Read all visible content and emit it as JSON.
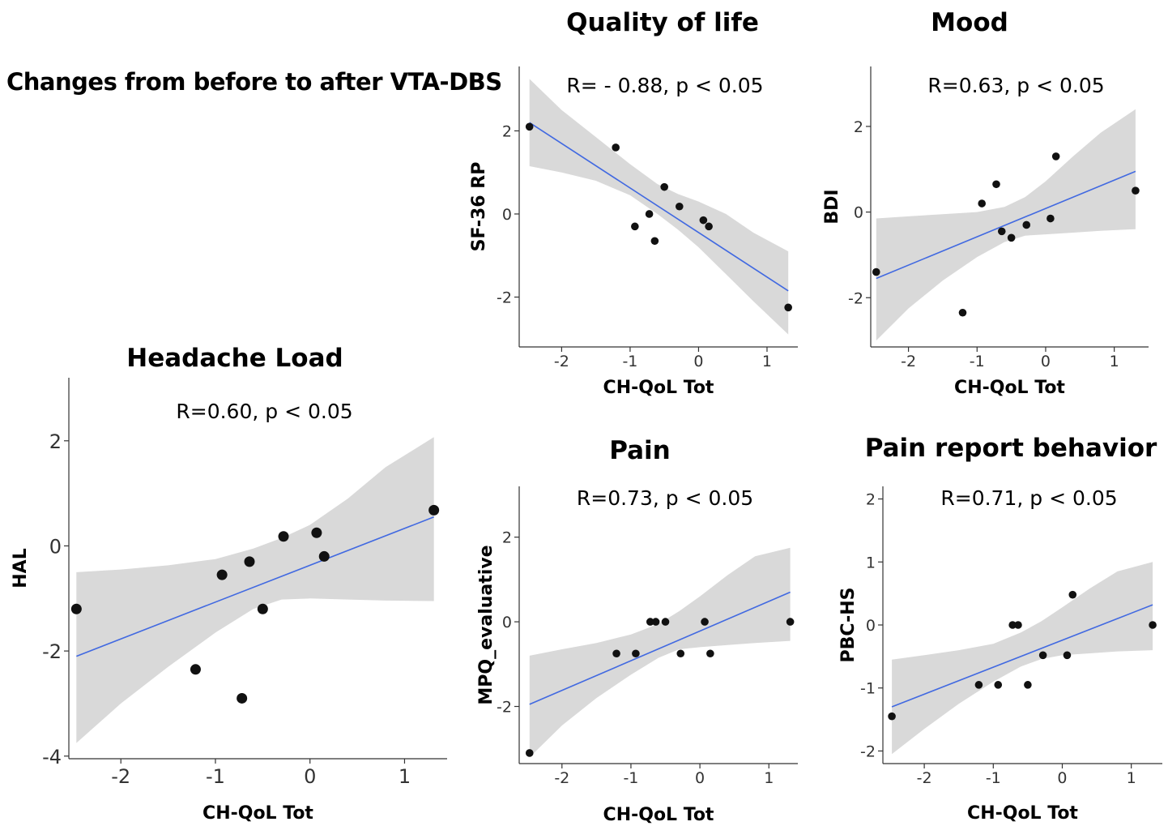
{
  "figure": {
    "main_title": "Changes from before to after VTA-DBS"
  },
  "chart_data": [
    {
      "id": "headache",
      "type": "scatter",
      "title": "Headache Load",
      "annotation": "R=0.60, p < 0.05",
      "xlabel": "CH-QoL Tot",
      "ylabel": "HAL",
      "xlim": [
        -2.55,
        1.45
      ],
      "ylim": [
        -4.05,
        3.2
      ],
      "xticks": [
        -2,
        -1,
        0,
        1
      ],
      "yticks": [
        -4,
        -2,
        0,
        2
      ],
      "grid": false,
      "points": [
        {
          "x": -2.47,
          "y": -1.2
        },
        {
          "x": -1.21,
          "y": -2.35
        },
        {
          "x": -0.93,
          "y": -0.55
        },
        {
          "x": -0.72,
          "y": -2.9
        },
        {
          "x": -0.64,
          "y": -0.3
        },
        {
          "x": -0.5,
          "y": -1.2
        },
        {
          "x": -0.28,
          "y": 0.18
        },
        {
          "x": 0.07,
          "y": 0.25
        },
        {
          "x": 0.15,
          "y": -0.2
        },
        {
          "x": 1.31,
          "y": 0.68
        }
      ],
      "fit": {
        "x": [
          -2.47,
          1.31
        ],
        "y": [
          -2.1,
          0.55
        ]
      },
      "ci": [
        {
          "x": -2.47,
          "lo": -3.75,
          "hi": -0.5
        },
        {
          "x": -2.0,
          "lo": -3.0,
          "hi": -0.45
        },
        {
          "x": -1.5,
          "lo": -2.3,
          "hi": -0.37
        },
        {
          "x": -1.0,
          "lo": -1.65,
          "hi": -0.25
        },
        {
          "x": -0.6,
          "lo": -1.2,
          "hi": -0.05
        },
        {
          "x": -0.3,
          "lo": -1.02,
          "hi": 0.15
        },
        {
          "x": 0.0,
          "lo": -1.0,
          "hi": 0.4
        },
        {
          "x": 0.4,
          "lo": -1.02,
          "hi": 0.9
        },
        {
          "x": 0.8,
          "lo": -1.04,
          "hi": 1.5
        },
        {
          "x": 1.31,
          "lo": -1.05,
          "hi": 2.07
        }
      ]
    },
    {
      "id": "qol",
      "type": "scatter",
      "title": "Quality of life",
      "annotation": "R= - 0.88, p < 0.05",
      "xlabel": "CH-QoL Tot",
      "ylabel": "SF-36 RP",
      "xlim": [
        -2.62,
        1.45
      ],
      "ylim": [
        -3.2,
        3.55
      ],
      "xticks": [
        -2,
        -1,
        0,
        1
      ],
      "yticks": [
        -2,
        0,
        2
      ],
      "grid": false,
      "points": [
        {
          "x": -2.47,
          "y": 2.1
        },
        {
          "x": -1.21,
          "y": 1.6
        },
        {
          "x": -0.93,
          "y": -0.3
        },
        {
          "x": -0.72,
          "y": 0.0
        },
        {
          "x": -0.64,
          "y": -0.65
        },
        {
          "x": -0.5,
          "y": 0.65
        },
        {
          "x": -0.28,
          "y": 0.18
        },
        {
          "x": 0.07,
          "y": -0.15
        },
        {
          "x": 0.15,
          "y": -0.3
        },
        {
          "x": 1.31,
          "y": -2.25
        }
      ],
      "fit": {
        "x": [
          -2.47,
          1.31
        ],
        "y": [
          2.2,
          -1.85
        ]
      },
      "ci": [
        {
          "x": -2.47,
          "lo": 1.15,
          "hi": 3.25
        },
        {
          "x": -2.0,
          "lo": 1.0,
          "hi": 2.5
        },
        {
          "x": -1.5,
          "lo": 0.8,
          "hi": 1.85
        },
        {
          "x": -1.0,
          "lo": 0.45,
          "hi": 1.2
        },
        {
          "x": -0.6,
          "lo": 0.0,
          "hi": 0.72
        },
        {
          "x": -0.3,
          "lo": -0.38,
          "hi": 0.48
        },
        {
          "x": 0.0,
          "lo": -0.8,
          "hi": 0.3
        },
        {
          "x": 0.4,
          "lo": -1.45,
          "hi": 0.0
        },
        {
          "x": 0.8,
          "lo": -2.1,
          "hi": -0.45
        },
        {
          "x": 1.31,
          "lo": -2.9,
          "hi": -0.9
        }
      ]
    },
    {
      "id": "mood",
      "type": "scatter",
      "title": "Mood",
      "annotation": "R=0.63, p < 0.05",
      "xlabel": "CH-QoL Tot",
      "ylabel": "BDI",
      "xlim": [
        -2.55,
        1.5
      ],
      "ylim": [
        -3.15,
        3.4
      ],
      "xticks": [
        -2,
        -1,
        0,
        1
      ],
      "yticks": [
        -2,
        0,
        2
      ],
      "grid": false,
      "points": [
        {
          "x": -2.47,
          "y": -1.4
        },
        {
          "x": -1.21,
          "y": -2.35
        },
        {
          "x": -0.93,
          "y": 0.2
        },
        {
          "x": -0.72,
          "y": 0.65
        },
        {
          "x": -0.64,
          "y": -0.45
        },
        {
          "x": -0.5,
          "y": -0.6
        },
        {
          "x": -0.28,
          "y": -0.3
        },
        {
          "x": 0.07,
          "y": -0.15
        },
        {
          "x": 0.15,
          "y": 1.3
        },
        {
          "x": 1.31,
          "y": 0.5
        }
      ],
      "fit": {
        "x": [
          -2.47,
          1.31
        ],
        "y": [
          -1.55,
          0.95
        ]
      },
      "ci": [
        {
          "x": -2.47,
          "lo": -3.0,
          "hi": -0.15
        },
        {
          "x": -2.0,
          "lo": -2.25,
          "hi": -0.1
        },
        {
          "x": -1.5,
          "lo": -1.6,
          "hi": -0.05
        },
        {
          "x": -1.0,
          "lo": -1.05,
          "hi": 0.0
        },
        {
          "x": -0.6,
          "lo": -0.7,
          "hi": 0.12
        },
        {
          "x": -0.3,
          "lo": -0.55,
          "hi": 0.35
        },
        {
          "x": 0.0,
          "lo": -0.52,
          "hi": 0.72
        },
        {
          "x": 0.4,
          "lo": -0.48,
          "hi": 1.3
        },
        {
          "x": 0.8,
          "lo": -0.44,
          "hi": 1.85
        },
        {
          "x": 1.31,
          "lo": -0.4,
          "hi": 2.4
        }
      ]
    },
    {
      "id": "pain",
      "type": "scatter",
      "title": "Pain",
      "annotation": "R=0.73, p < 0.05",
      "xlabel": "CH-QoL Tot",
      "ylabel": "MPQ_evaluative",
      "xlim": [
        -2.62,
        1.42
      ],
      "ylim": [
        -3.35,
        3.2
      ],
      "xticks": [
        -2,
        -1,
        0,
        1
      ],
      "yticks": [
        -2,
        0,
        2
      ],
      "grid": false,
      "points": [
        {
          "x": -2.47,
          "y": -3.1
        },
        {
          "x": -1.21,
          "y": -0.75
        },
        {
          "x": -0.93,
          "y": -0.75
        },
        {
          "x": -0.72,
          "y": 0.0
        },
        {
          "x": -0.64,
          "y": 0.0
        },
        {
          "x": -0.5,
          "y": 0.0
        },
        {
          "x": -0.28,
          "y": -0.75
        },
        {
          "x": 0.07,
          "y": 0.0
        },
        {
          "x": 0.15,
          "y": -0.75
        },
        {
          "x": 1.31,
          "y": 0.0
        }
      ],
      "fit": {
        "x": [
          -2.47,
          1.31
        ],
        "y": [
          -1.95,
          0.7
        ]
      },
      "ci": [
        {
          "x": -2.47,
          "lo": -3.2,
          "hi": -0.8
        },
        {
          "x": -2.0,
          "lo": -2.45,
          "hi": -0.65
        },
        {
          "x": -1.5,
          "lo": -1.8,
          "hi": -0.5
        },
        {
          "x": -1.0,
          "lo": -1.25,
          "hi": -0.3
        },
        {
          "x": -0.6,
          "lo": -0.85,
          "hi": -0.05
        },
        {
          "x": -0.3,
          "lo": -0.65,
          "hi": 0.25
        },
        {
          "x": 0.0,
          "lo": -0.6,
          "hi": 0.6
        },
        {
          "x": 0.4,
          "lo": -0.55,
          "hi": 1.1
        },
        {
          "x": 0.8,
          "lo": -0.5,
          "hi": 1.55
        },
        {
          "x": 1.31,
          "lo": -0.45,
          "hi": 1.75
        }
      ]
    },
    {
      "id": "painreport",
      "type": "scatter",
      "title": "Pain report behavior",
      "annotation": "R=0.71, p < 0.05",
      "xlabel": "CH-QoL Tot",
      "ylabel": "PBC-HS",
      "xlim": [
        -2.6,
        1.45
      ],
      "ylim": [
        -2.2,
        2.2
      ],
      "xticks": [
        -2,
        -1,
        0,
        1
      ],
      "yticks": [
        -2,
        -1,
        0,
        1,
        2
      ],
      "grid": false,
      "points": [
        {
          "x": -2.47,
          "y": -1.45
        },
        {
          "x": -1.21,
          "y": -0.95
        },
        {
          "x": -0.93,
          "y": -0.95
        },
        {
          "x": -0.72,
          "y": 0.0
        },
        {
          "x": -0.64,
          "y": 0.0
        },
        {
          "x": -0.5,
          "y": -0.95
        },
        {
          "x": -0.28,
          "y": -0.48
        },
        {
          "x": 0.07,
          "y": -0.48
        },
        {
          "x": 0.15,
          "y": 0.48
        },
        {
          "x": 1.31,
          "y": 0.0
        }
      ],
      "fit": {
        "x": [
          -2.47,
          1.31
        ],
        "y": [
          -1.3,
          0.32
        ]
      },
      "ci": [
        {
          "x": -2.47,
          "lo": -2.05,
          "hi": -0.55
        },
        {
          "x": -2.0,
          "lo": -1.65,
          "hi": -0.48
        },
        {
          "x": -1.5,
          "lo": -1.25,
          "hi": -0.4
        },
        {
          "x": -1.0,
          "lo": -0.9,
          "hi": -0.3
        },
        {
          "x": -0.6,
          "lo": -0.66,
          "hi": -0.12
        },
        {
          "x": -0.3,
          "lo": -0.54,
          "hi": 0.06
        },
        {
          "x": 0.0,
          "lo": -0.48,
          "hi": 0.28
        },
        {
          "x": 0.4,
          "lo": -0.45,
          "hi": 0.58
        },
        {
          "x": 0.8,
          "lo": -0.42,
          "hi": 0.85
        },
        {
          "x": 1.31,
          "lo": -0.4,
          "hi": 1.0
        }
      ]
    }
  ],
  "colors": {
    "fit_line": "#4169e1",
    "ci_band": "#d9d9d9",
    "points": "#111111"
  }
}
